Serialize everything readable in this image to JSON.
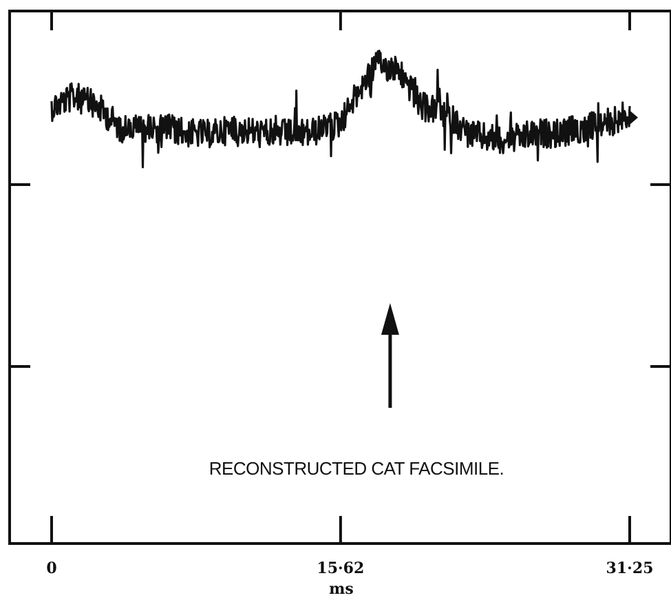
{
  "chart_data": {
    "type": "line",
    "title": "",
    "xlabel": "ms",
    "ylabel": "",
    "xlim": [
      0,
      31.25
    ],
    "x_ticks": [
      0,
      15.62,
      31.25
    ],
    "x_tick_labels": [
      "0",
      "15·62",
      "31·25"
    ],
    "grid": false,
    "legend": "none",
    "series": [
      {
        "x": [
          0,
          1.25,
          2.5,
          3.75,
          5.0,
          6.25,
          7.5,
          8.75,
          10.0,
          11.25,
          12.5,
          13.75,
          15.0,
          15.62,
          16.25,
          17.5,
          18.75,
          20.0,
          21.25,
          22.5,
          23.75,
          25.0,
          26.25,
          27.5,
          28.75,
          30.0,
          31.25
        ],
        "y": [
          0.82,
          0.84,
          0.82,
          0.78,
          0.78,
          0.78,
          0.77,
          0.77,
          0.78,
          0.77,
          0.77,
          0.77,
          0.78,
          0.79,
          0.83,
          0.9,
          0.89,
          0.82,
          0.81,
          0.77,
          0.76,
          0.76,
          0.77,
          0.77,
          0.78,
          0.79,
          0.8
        ]
      }
    ],
    "line_color": "#111111",
    "annotations": [
      {
        "text": "RECONSTRUCTED CAT FACSIMILE.",
        "arrow_x": 18.3
      }
    ]
  }
}
